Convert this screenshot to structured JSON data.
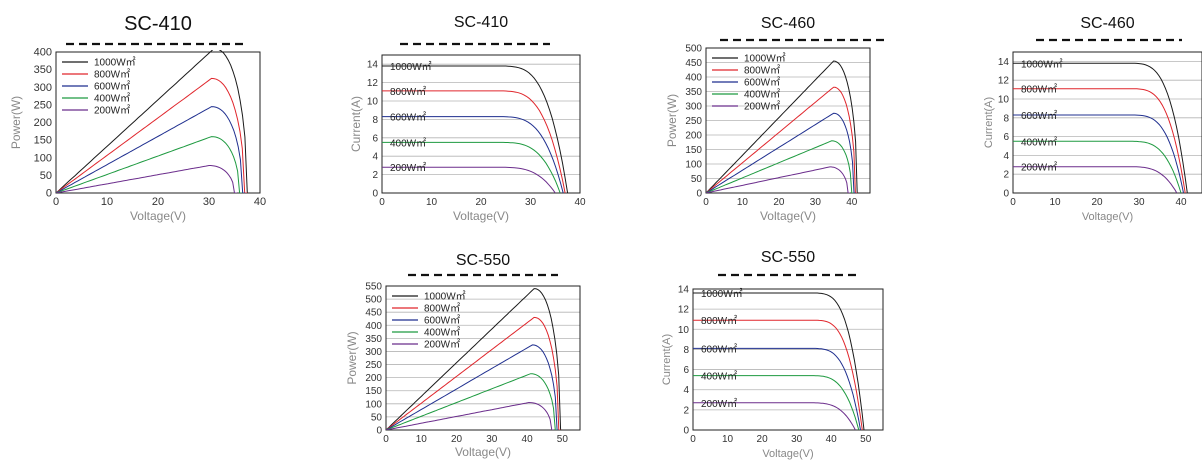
{
  "colors": [
    "#1a1a1a",
    "#e0262c",
    "#1f2f8f",
    "#1e9a40",
    "#6b2d8c"
  ],
  "chart_data": [
    {
      "type": "line",
      "kind": "power",
      "title": "SC-410",
      "xlabel": "Voltage(V)",
      "ylabel": "Power(W)",
      "xlim": [
        0,
        40
      ],
      "ylim": [
        0,
        400
      ],
      "xticks": [
        0,
        10,
        20,
        30,
        40
      ],
      "yticks": [
        0,
        50,
        100,
        150,
        200,
        250,
        300,
        350,
        400
      ],
      "grid": false,
      "legend": "top-left",
      "series": [
        {
          "name": "1000W㎡",
          "mpp_v": 31,
          "mpp_p": 410,
          "voc": 37.5
        },
        {
          "name": "800W㎡",
          "mpp_v": 30.5,
          "mpp_p": 325,
          "voc": 37.0
        },
        {
          "name": "600W㎡",
          "mpp_v": 30.5,
          "mpp_p": 245,
          "voc": 36.6
        },
        {
          "name": "400W㎡",
          "mpp_v": 30.5,
          "mpp_p": 160,
          "voc": 36.0
        },
        {
          "name": "200W㎡",
          "mpp_v": 30,
          "mpp_p": 78,
          "voc": 35.0
        }
      ]
    },
    {
      "type": "line",
      "kind": "current",
      "title": "SC-410",
      "xlabel": "Voltage(V)",
      "ylabel": "Current(A)",
      "xlim": [
        0,
        40
      ],
      "ylim": [
        0,
        15
      ],
      "xticks": [
        0,
        10,
        20,
        30,
        40
      ],
      "yticks": [
        0,
        2,
        4,
        6,
        8,
        10,
        12,
        14
      ],
      "grid": true,
      "legend": "inline",
      "series": [
        {
          "name": "1000W㎡",
          "isc": 13.8,
          "knee_v": 31,
          "voc": 37.5
        },
        {
          "name": "800W㎡",
          "isc": 11.1,
          "knee_v": 30.5,
          "voc": 37.0
        },
        {
          "name": "600W㎡",
          "isc": 8.3,
          "knee_v": 30.5,
          "voc": 36.6
        },
        {
          "name": "400W㎡",
          "isc": 5.5,
          "knee_v": 30.5,
          "voc": 36.0
        },
        {
          "name": "200W㎡",
          "isc": 2.8,
          "knee_v": 30,
          "voc": 35.0
        }
      ]
    },
    {
      "type": "line",
      "kind": "power",
      "title": "SC-460",
      "xlabel": "Voltage(V)",
      "ylabel": "Power(W)",
      "xlim": [
        0,
        45
      ],
      "ylim": [
        0,
        500
      ],
      "xticks": [
        0,
        10,
        20,
        30,
        40
      ],
      "yticks": [
        0,
        50,
        100,
        150,
        200,
        250,
        300,
        350,
        400,
        450,
        500
      ],
      "grid": true,
      "legend": "top-left",
      "series": [
        {
          "name": "1000W㎡",
          "mpp_v": 35,
          "mpp_p": 455,
          "voc": 41.5
        },
        {
          "name": "800W㎡",
          "mpp_v": 35,
          "mpp_p": 365,
          "voc": 41.0
        },
        {
          "name": "600W㎡",
          "mpp_v": 35,
          "mpp_p": 275,
          "voc": 40.6
        },
        {
          "name": "400W㎡",
          "mpp_v": 34.5,
          "mpp_p": 180,
          "voc": 40.0
        },
        {
          "name": "200W㎡",
          "mpp_v": 34,
          "mpp_p": 90,
          "voc": 39.0
        }
      ]
    },
    {
      "type": "line",
      "kind": "current",
      "title": "SC-460",
      "xlabel": "Voltage(V)",
      "ylabel": "Current(A)",
      "xlim": [
        0,
        45
      ],
      "ylim": [
        0,
        15
      ],
      "xticks": [
        0,
        10,
        20,
        30,
        40
      ],
      "yticks": [
        0,
        2,
        4,
        6,
        8,
        10,
        12,
        14
      ],
      "grid": true,
      "legend": "inline",
      "series": [
        {
          "name": "1000W㎡",
          "isc": 13.8,
          "knee_v": 35,
          "voc": 41.5
        },
        {
          "name": "800W㎡",
          "isc": 11.1,
          "knee_v": 35,
          "voc": 41.0
        },
        {
          "name": "600W㎡",
          "isc": 8.3,
          "knee_v": 35,
          "voc": 40.6
        },
        {
          "name": "400W㎡",
          "isc": 5.5,
          "knee_v": 34.5,
          "voc": 40.0
        },
        {
          "name": "200W㎡",
          "isc": 2.8,
          "knee_v": 34,
          "voc": 39.0
        }
      ]
    },
    {
      "type": "line",
      "kind": "power",
      "title": "SC-550",
      "xlabel": "Voltage(V)",
      "ylabel": "Power(W)",
      "xlim": [
        0,
        55
      ],
      "ylim": [
        0,
        550
      ],
      "xticks": [
        0,
        10,
        20,
        30,
        40,
        50
      ],
      "yticks": [
        0,
        50,
        100,
        150,
        200,
        250,
        300,
        350,
        400,
        450,
        500,
        550
      ],
      "grid": true,
      "legend": "top-left",
      "series": [
        {
          "name": "1000W㎡",
          "mpp_v": 42,
          "mpp_p": 540,
          "voc": 49.5
        },
        {
          "name": "800W㎡",
          "mpp_v": 42,
          "mpp_p": 430,
          "voc": 49.0
        },
        {
          "name": "600W㎡",
          "mpp_v": 41.5,
          "mpp_p": 325,
          "voc": 48.5
        },
        {
          "name": "400W㎡",
          "mpp_v": 41,
          "mpp_p": 215,
          "voc": 48.0
        },
        {
          "name": "200W㎡",
          "mpp_v": 40.5,
          "mpp_p": 105,
          "voc": 47.0
        }
      ]
    },
    {
      "type": "line",
      "kind": "current",
      "title": "SC-550",
      "xlabel": "Voltage(V)",
      "ylabel": "Current(A)",
      "xlim": [
        0,
        55
      ],
      "ylim": [
        0,
        14
      ],
      "xticks": [
        0,
        10,
        20,
        30,
        40,
        50
      ],
      "yticks": [
        0,
        2,
        4,
        6,
        8,
        10,
        12,
        14
      ],
      "grid": true,
      "legend": "inline",
      "series": [
        {
          "name": "1000W㎡",
          "isc": 13.6,
          "knee_v": 42,
          "voc": 49.5
        },
        {
          "name": "800W㎡",
          "isc": 10.9,
          "knee_v": 42,
          "voc": 49.0
        },
        {
          "name": "600W㎡",
          "isc": 8.1,
          "knee_v": 41.5,
          "voc": 48.5
        },
        {
          "name": "400W㎡",
          "isc": 5.4,
          "knee_v": 41,
          "voc": 48.0
        },
        {
          "name": "200W㎡",
          "isc": 2.7,
          "knee_v": 40.5,
          "voc": 47.0
        }
      ]
    }
  ]
}
